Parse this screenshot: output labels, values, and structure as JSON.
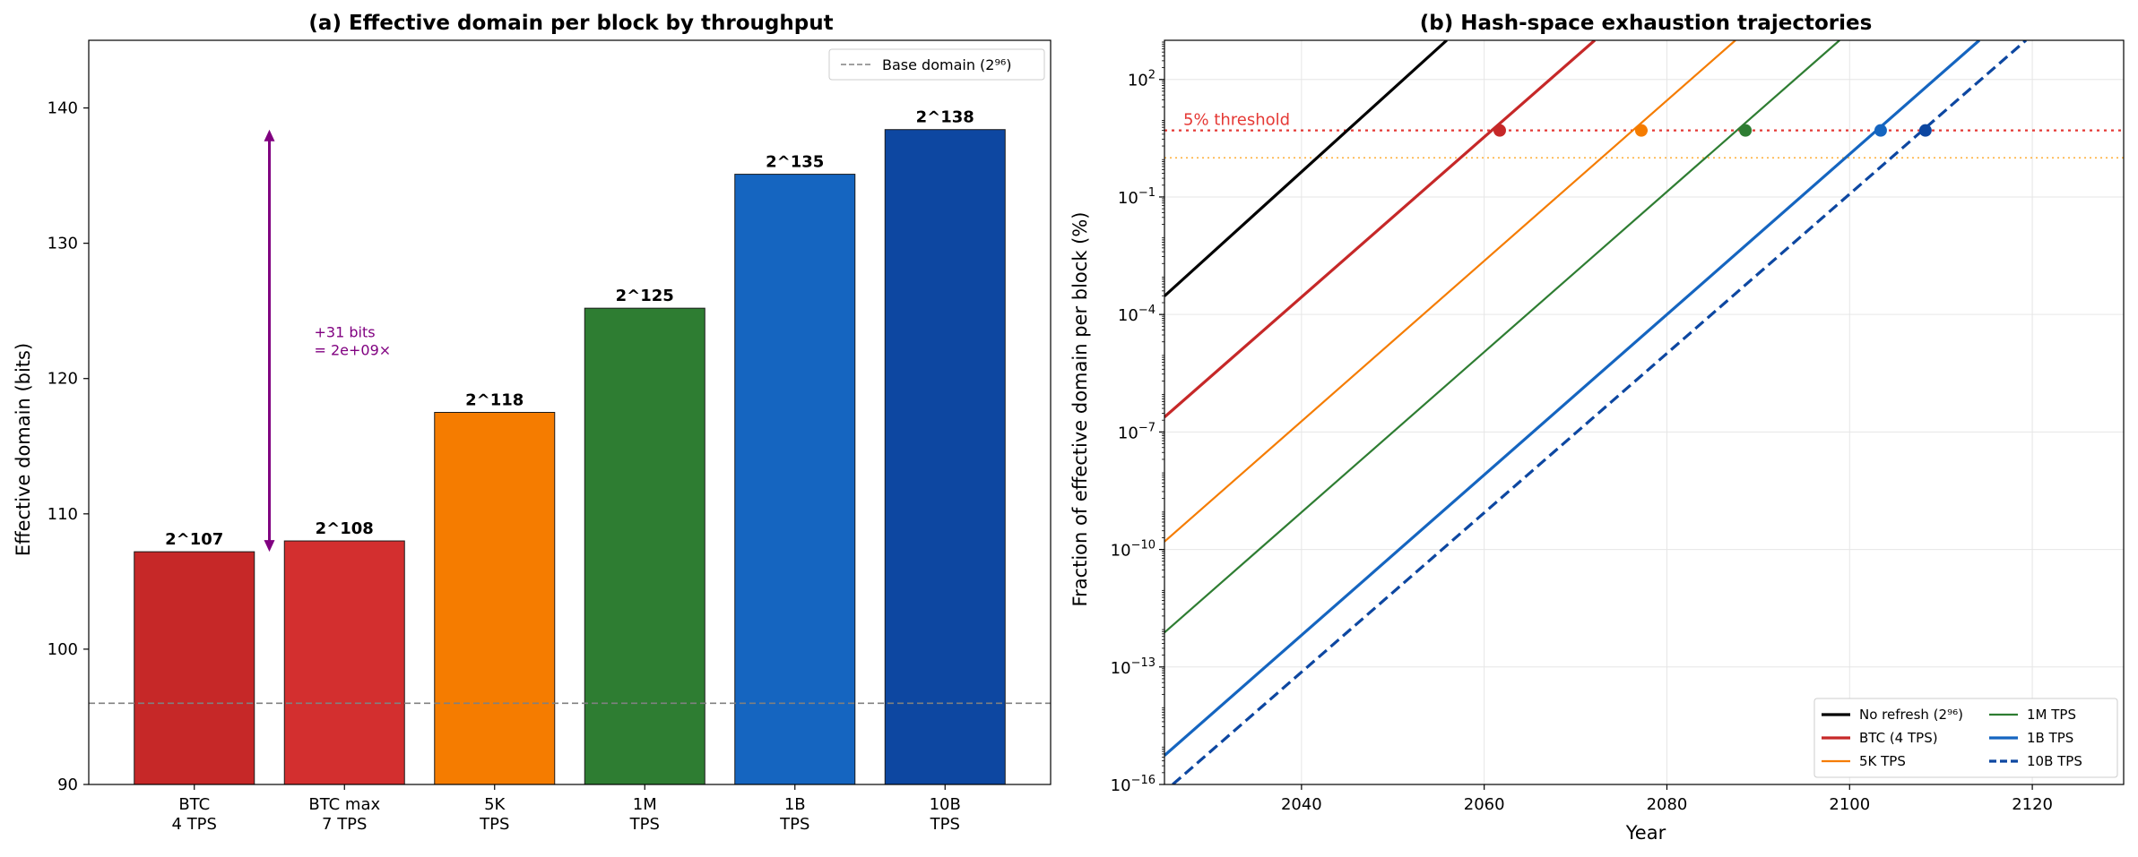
{
  "chart_data": [
    {
      "type": "bar",
      "title": "(a) Effective domain per block by throughput",
      "xlabel": "",
      "ylabel": "Effective domain (bits)",
      "ylim": [
        90,
        145
      ],
      "yticks": [
        90,
        100,
        110,
        120,
        130,
        140
      ],
      "grid": false,
      "categories": [
        {
          "line1": "BTC",
          "line2": "4 TPS"
        },
        {
          "line1": "BTC max",
          "line2": "7 TPS"
        },
        {
          "line1": "5K",
          "line2": "TPS"
        },
        {
          "line1": "1M",
          "line2": "TPS"
        },
        {
          "line1": "1B",
          "line2": "TPS"
        },
        {
          "line1": "10B",
          "line2": "TPS"
        }
      ],
      "values": [
        107.2,
        108.0,
        117.5,
        125.2,
        135.1,
        138.4
      ],
      "data_labels": [
        "2^107",
        "2^108",
        "2^118",
        "2^125",
        "2^135",
        "2^138"
      ],
      "colors": [
        "#c62828",
        "#d32f2f",
        "#f57c00",
        "#2e7d32",
        "#1565c0",
        "#0d47a1"
      ],
      "baseline": {
        "value": 96,
        "label": "Base domain (2⁹⁶)",
        "color": "#808080"
      },
      "annotation": {
        "from": 107.2,
        "to": 138.4,
        "line1": "+31 bits",
        "line2": "= 2e+09×",
        "color": "#800080"
      },
      "legend_position": "top-right"
    },
    {
      "type": "line",
      "title": "(b) Hash-space exhaustion trajectories",
      "xlabel": "Year",
      "ylabel": "Fraction of effective domain per block (%)",
      "yscale": "log",
      "xlim": [
        2025,
        2130
      ],
      "ylog_range": [
        -16,
        3
      ],
      "xticks": [
        2040,
        2060,
        2080,
        2100,
        2120
      ],
      "ytick_exponents": [
        -16,
        -13,
        -10,
        -7,
        -4,
        -1,
        2
      ],
      "grid": true,
      "threshold": {
        "value": 5,
        "label": "5% threshold",
        "color": "#e53935"
      },
      "secondary_line": {
        "value": 1,
        "color": "#ffa726"
      },
      "series": [
        {
          "name": "No refresh (2⁹⁶)",
          "x": [
            2025,
            2055.9
          ],
          "y_log10": [
            -3.53,
            3.0
          ],
          "color": "#000000",
          "dash": "",
          "width": 3.2,
          "marker_year": null
        },
        {
          "name": "BTC (4 TPS)",
          "x": [
            2025,
            2072.1
          ],
          "y_log10": [
            -6.62,
            3.0
          ],
          "color": "#c62828",
          "dash": "",
          "width": 3.2,
          "marker_year": 2061.7
        },
        {
          "name": "5K TPS",
          "x": [
            2025,
            2087.5
          ],
          "y_log10": [
            -9.8,
            3.0
          ],
          "color": "#f57c00",
          "dash": "",
          "width": 2.2,
          "marker_year": 2077.2
        },
        {
          "name": "1M TPS",
          "x": [
            2025,
            2098.9
          ],
          "y_log10": [
            -12.12,
            3.0
          ],
          "color": "#2e7d32",
          "dash": "",
          "width": 2.2,
          "marker_year": 2088.6
        },
        {
          "name": "1B TPS",
          "x": [
            2025,
            2114.2
          ],
          "y_log10": [
            -15.26,
            3.0
          ],
          "color": "#1565c0",
          "dash": "",
          "width": 3.2,
          "marker_year": 2103.4
        },
        {
          "name": "10B TPS",
          "x": [
            2025.9,
            2119.3
          ],
          "y_log10": [
            -16.0,
            3.0
          ],
          "color": "#0d47a1",
          "dash": "12,6",
          "width": 3.2,
          "marker_year": 2108.3
        }
      ],
      "legend_position": "bottom-right"
    }
  ]
}
